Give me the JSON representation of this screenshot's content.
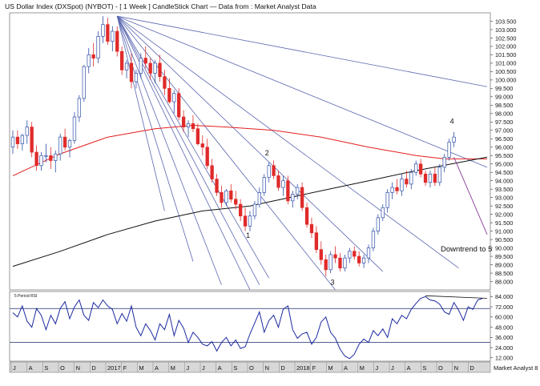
{
  "chart_data": {
    "type": "candlestick",
    "title": "US Dollar Index (DXSpot) (NYBOT) - [ 1 Week ] CandleStick Chart — Data from : Market Analyst Data",
    "brand": "Market Analyst 8",
    "price_axis": {
      "ylim": [
        87.5,
        104.0
      ],
      "ticks": [
        103.5,
        103.0,
        102.5,
        102.0,
        101.5,
        101.0,
        100.5,
        100.0,
        99.5,
        99.0,
        98.5,
        98.0,
        97.5,
        97.0,
        96.5,
        96.0,
        95.5,
        95.0,
        94.5,
        94.0,
        93.5,
        93.0,
        92.5,
        92.0,
        91.5,
        91.0,
        90.5,
        90.0,
        89.5,
        89.0,
        88.5,
        88.0
      ],
      "tick_labels": [
        "103.500",
        "103.000",
        "102.500",
        "102.000",
        "101.500",
        "101.000",
        "100.500",
        "100.000",
        "99.500",
        "99.000",
        "98.500",
        "98.000",
        "97.500",
        "97.000",
        "96.500",
        "96.000",
        "95.500",
        "95.000",
        "94.500",
        "94.000",
        "93.500",
        "93.000",
        "92.500",
        "92.000",
        "91.500",
        "91.000",
        "90.500",
        "90.000",
        "89.500",
        "89.000",
        "88.500",
        "88.000"
      ]
    },
    "rsi_panel": {
      "label": "5 Period RSI",
      "ylim": [
        8,
        90
      ],
      "ticks": [
        84,
        72,
        60,
        48,
        36,
        24,
        12
      ],
      "tick_labels": [
        "84.000",
        "72.000",
        "60.000",
        "48.000",
        "36.000",
        "24.000",
        "12.000"
      ],
      "levels": [
        70,
        30
      ],
      "values": [
        65,
        60,
        73,
        55,
        48,
        70,
        62,
        45,
        62,
        52,
        70,
        78,
        58,
        72,
        80,
        62,
        56,
        77,
        71,
        80,
        73,
        69,
        52,
        64,
        55,
        73,
        48,
        38,
        52,
        44,
        33,
        52,
        45,
        63,
        38,
        56,
        47,
        30,
        42,
        36,
        28,
        26,
        31,
        20,
        30,
        36,
        26,
        33,
        23,
        25,
        40,
        53,
        66,
        42,
        56,
        62,
        48,
        69,
        73,
        45,
        35,
        40,
        42,
        28,
        36,
        54,
        60,
        42,
        35,
        22,
        14,
        11,
        16,
        28,
        34,
        30,
        44,
        38,
        46,
        36,
        58,
        52,
        62,
        58,
        69,
        76,
        82,
        84,
        80,
        79,
        75,
        66,
        63,
        77,
        68,
        56,
        72,
        69,
        80,
        82
      ],
      "divergence_line": [
        [
          87,
          85
        ],
        [
          100,
          82
        ]
      ]
    },
    "date_axis": {
      "labels": [
        "J",
        "A",
        "S",
        "O",
        "N",
        "D",
        "2017",
        "F",
        "M",
        "A",
        "M",
        "J",
        "J",
        "A",
        "S",
        "O",
        "N",
        "D",
        "2018",
        "F",
        "M",
        "A",
        "M",
        "J",
        "J",
        "A",
        "S",
        "O",
        "N",
        "D"
      ]
    },
    "series": [
      {
        "name": "",
        "kind": "moving-average-red",
        "values": [
          [
            0,
            94.3
          ],
          [
            10,
            95.6
          ],
          [
            20,
            96.6
          ],
          [
            30,
            97.1
          ],
          [
            38,
            97.3
          ],
          [
            45,
            97.2
          ],
          [
            55,
            97.0
          ],
          [
            65,
            96.6
          ],
          [
            75,
            96.0
          ],
          [
            85,
            95.5
          ],
          [
            91,
            95.3
          ],
          [
            100,
            95.3
          ]
        ]
      },
      {
        "name": "",
        "kind": "moving-average-black",
        "values": [
          [
            0,
            88.9
          ],
          [
            10,
            89.8
          ],
          [
            20,
            90.8
          ],
          [
            30,
            91.6
          ],
          [
            40,
            92.2
          ],
          [
            50,
            92.5
          ],
          [
            55,
            92.8
          ],
          [
            65,
            93.4
          ],
          [
            75,
            94.0
          ],
          [
            85,
            94.6
          ],
          [
            100,
            95.4
          ]
        ]
      }
    ],
    "candles_ohlc": [
      [
        96.0,
        97.0,
        95.6,
        96.6
      ],
      [
        96.6,
        97.0,
        95.9,
        96.2
      ],
      [
        96.2,
        96.8,
        95.8,
        96.7
      ],
      [
        96.7,
        97.6,
        96.2,
        97.2
      ],
      [
        97.2,
        97.5,
        95.4,
        95.7
      ],
      [
        95.7,
        96.1,
        94.6,
        94.9
      ],
      [
        94.9,
        95.7,
        94.6,
        95.5
      ],
      [
        95.5,
        96.2,
        95.1,
        95.5
      ],
      [
        95.5,
        96.0,
        94.7,
        95.2
      ],
      [
        95.2,
        95.8,
        94.5,
        95.6
      ],
      [
        95.6,
        96.8,
        95.2,
        96.6
      ],
      [
        96.6,
        97.1,
        95.8,
        96.0
      ],
      [
        96.0,
        96.5,
        95.4,
        96.4
      ],
      [
        96.4,
        98.1,
        96.2,
        97.8
      ],
      [
        97.8,
        99.1,
        97.5,
        98.9
      ],
      [
        98.9,
        100.9,
        98.7,
        100.8
      ],
      [
        100.8,
        101.9,
        100.4,
        101.5
      ],
      [
        101.5,
        102.2,
        100.8,
        101.3
      ],
      [
        101.3,
        102.9,
        101.0,
        102.6
      ],
      [
        102.6,
        103.8,
        102.2,
        103.3
      ],
      [
        103.3,
        103.7,
        102.1,
        102.3
      ],
      [
        102.3,
        103.2,
        101.7,
        102.9
      ],
      [
        102.9,
        103.2,
        101.4,
        101.7
      ],
      [
        101.7,
        102.0,
        100.3,
        100.6
      ],
      [
        100.6,
        101.2,
        100.1,
        101.0
      ],
      [
        101.0,
        101.6,
        99.5,
        99.9
      ],
      [
        99.9,
        100.6,
        99.5,
        100.4
      ],
      [
        100.4,
        101.6,
        100.1,
        101.3
      ],
      [
        101.3,
        102.0,
        100.7,
        101.0
      ],
      [
        101.0,
        101.3,
        100.0,
        100.4
      ],
      [
        100.4,
        101.2,
        99.8,
        101.0
      ],
      [
        101.0,
        101.5,
        99.9,
        100.2
      ],
      [
        100.2,
        100.6,
        99.1,
        99.5
      ],
      [
        99.5,
        100.1,
        98.6,
        98.7
      ],
      [
        98.7,
        99.4,
        98.0,
        99.2
      ],
      [
        99.2,
        99.5,
        97.6,
        97.8
      ],
      [
        97.8,
        98.2,
        96.9,
        97.2
      ],
      [
        97.2,
        97.6,
        96.6,
        97.4
      ],
      [
        97.4,
        97.9,
        96.9,
        97.1
      ],
      [
        97.1,
        97.4,
        96.1,
        96.2
      ],
      [
        96.2,
        96.7,
        95.5,
        96.0
      ],
      [
        96.0,
        96.5,
        94.7,
        94.9
      ],
      [
        94.9,
        95.3,
        93.9,
        94.1
      ],
      [
        94.1,
        94.4,
        93.1,
        93.3
      ],
      [
        93.3,
        93.7,
        92.4,
        92.7
      ],
      [
        92.7,
        93.5,
        92.5,
        93.4
      ],
      [
        93.4,
        93.8,
        92.7,
        92.9
      ],
      [
        92.9,
        93.4,
        92.3,
        92.6
      ],
      [
        92.6,
        92.9,
        91.6,
        91.9
      ],
      [
        91.9,
        92.4,
        91.0,
        91.3
      ],
      [
        91.3,
        92.2,
        91.0,
        91.9
      ],
      [
        91.9,
        92.8,
        91.7,
        92.6
      ],
      [
        92.6,
        93.6,
        92.4,
        93.3
      ],
      [
        93.3,
        94.4,
        93.1,
        94.2
      ],
      [
        94.2,
        95.1,
        93.9,
        94.9
      ],
      [
        94.9,
        95.2,
        94.1,
        94.3
      ],
      [
        94.3,
        94.6,
        93.4,
        93.6
      ],
      [
        93.6,
        94.3,
        93.1,
        94.0
      ],
      [
        94.0,
        94.3,
        92.6,
        92.8
      ],
      [
        92.8,
        93.4,
        92.4,
        93.2
      ],
      [
        93.2,
        93.8,
        92.9,
        93.6
      ],
      [
        93.6,
        93.9,
        92.2,
        92.4
      ],
      [
        92.4,
        92.7,
        91.2,
        91.4
      ],
      [
        91.4,
        91.8,
        90.6,
        90.9
      ],
      [
        90.9,
        91.3,
        89.7,
        89.9
      ],
      [
        89.9,
        90.4,
        89.0,
        89.3
      ],
      [
        89.3,
        89.6,
        88.3,
        88.7
      ],
      [
        88.7,
        89.8,
        88.5,
        89.6
      ],
      [
        89.6,
        90.1,
        89.1,
        89.4
      ],
      [
        89.4,
        89.7,
        88.6,
        88.8
      ],
      [
        88.8,
        89.6,
        88.6,
        89.4
      ],
      [
        89.4,
        90.0,
        89.1,
        89.8
      ],
      [
        89.8,
        90.1,
        89.3,
        89.5
      ],
      [
        89.5,
        89.8,
        88.9,
        89.1
      ],
      [
        89.1,
        89.6,
        88.8,
        89.4
      ],
      [
        89.4,
        90.2,
        89.1,
        90.0
      ],
      [
        90.0,
        91.2,
        89.8,
        91.0
      ],
      [
        91.0,
        92.0,
        90.8,
        91.8
      ],
      [
        91.8,
        92.6,
        91.6,
        92.4
      ],
      [
        92.4,
        93.5,
        92.1,
        93.3
      ],
      [
        93.3,
        93.9,
        92.9,
        93.6
      ],
      [
        93.6,
        94.1,
        93.2,
        93.4
      ],
      [
        93.4,
        94.4,
        93.1,
        94.1
      ],
      [
        94.1,
        94.6,
        93.6,
        93.8
      ],
      [
        93.8,
        94.7,
        93.5,
        94.5
      ],
      [
        94.5,
        95.2,
        94.3,
        95.0
      ],
      [
        95.0,
        95.3,
        94.2,
        94.4
      ],
      [
        94.4,
        94.6,
        93.7,
        93.9
      ],
      [
        93.9,
        94.6,
        93.6,
        94.4
      ],
      [
        94.4,
        94.8,
        93.7,
        93.9
      ],
      [
        93.9,
        95.0,
        93.7,
        94.8
      ],
      [
        94.8,
        95.6,
        94.5,
        95.4
      ],
      [
        95.4,
        96.5,
        95.2,
        96.3
      ],
      [
        96.3,
        96.9,
        96.0,
        96.6
      ]
    ],
    "fan_lines": {
      "origin": [
        22,
        103.8
      ],
      "ends": [
        [
          32,
          92.2
        ],
        [
          38,
          89.2
        ],
        [
          44,
          87.8
        ],
        [
          50,
          87.5
        ],
        [
          52,
          87.8
        ],
        [
          54,
          88.2
        ],
        [
          68,
          87.5
        ],
        [
          78,
          88.6
        ],
        [
          94,
          88.8
        ],
        [
          100,
          94.8
        ],
        [
          100,
          99.6
        ]
      ]
    },
    "forecast_line": {
      "from": [
        93,
        95.4
      ],
      "to": [
        100,
        90.8
      ]
    },
    "annotations": [
      {
        "text": "1",
        "x": 49.6,
        "y": 90.6
      },
      {
        "text": "2",
        "x": 53.6,
        "y": 95.5
      },
      {
        "text": "3",
        "x": 67.4,
        "y": 87.8
      },
      {
        "text": "4",
        "x": 92.6,
        "y": 97.4
      },
      {
        "text": "Downtrend to 5",
        "x": 100,
        "y": 89.8
      }
    ],
    "colors": {
      "bull": "#3050a8",
      "bear": "#e02a2a",
      "ma_red": "#e41e1e",
      "ma_black": "#111111",
      "fan": "#5a66b0",
      "forecast": "#8a3a9a",
      "rsi": "#1c2aa0",
      "date_axis_bg": "#d8d8d8"
    }
  }
}
